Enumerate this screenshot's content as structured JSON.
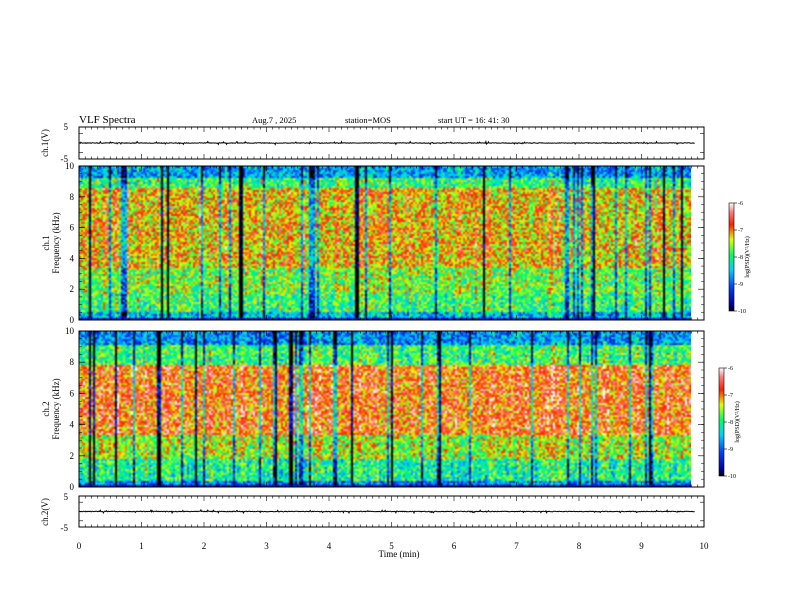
{
  "header": {
    "title": "VLF Spectra",
    "date": "Aug.7 , 2025",
    "station": "station=MOS",
    "start_ut": "start UT =  16: 41: 30"
  },
  "chart_data": [
    {
      "type": "line",
      "name": "ch1-waveform",
      "ylabel": "ch.1(V)",
      "ylim": [
        -5,
        5
      ],
      "yticks": [
        "5",
        "-5"
      ],
      "xlim": [
        0,
        10
      ],
      "baseline_value": 0
    },
    {
      "type": "heatmap",
      "name": "ch1-spectrogram",
      "ylabel_line1": "ch.1",
      "ylabel_line2": "Frequency (kHz)",
      "ylim": [
        0,
        10
      ],
      "yticks": [
        0,
        2,
        4,
        6,
        8,
        10
      ],
      "xlim": [
        0,
        10
      ],
      "data_end_min": 9.85,
      "colorbar": {
        "label": "log(PSD)(V²/Hz)",
        "range": [
          -10,
          -6
        ],
        "ticks": [
          "-6",
          "-7",
          "-8",
          "-9",
          "-10"
        ]
      }
    },
    {
      "type": "heatmap",
      "name": "ch2-spectrogram",
      "ylabel_line1": "ch.2",
      "ylabel_line2": "Frequency (kHz)",
      "ylim": [
        0,
        10
      ],
      "yticks": [
        0,
        2,
        4,
        6,
        8,
        10
      ],
      "xlim": [
        0,
        10
      ],
      "data_end_min": 9.85,
      "colorbar": {
        "label": "log(PSD)(V²/Hz)",
        "range": [
          -10,
          -6
        ],
        "ticks": [
          "-6",
          "-7",
          "-8",
          "-9",
          "-10"
        ]
      }
    },
    {
      "type": "line",
      "name": "ch2-waveform",
      "ylabel": "ch.2(V)",
      "ylim": [
        -5,
        5
      ],
      "yticks": [
        "5",
        "-5"
      ],
      "xlim": [
        0,
        10
      ],
      "baseline_value": 0
    }
  ],
  "xaxis": {
    "label": "Time (min)",
    "ticks": [
      "0",
      "1",
      "2",
      "3",
      "4",
      "5",
      "6",
      "7",
      "8",
      "9",
      "10"
    ]
  },
  "colors": {
    "background": "#ffffff",
    "axis": "#000000",
    "trace": "#000000"
  }
}
